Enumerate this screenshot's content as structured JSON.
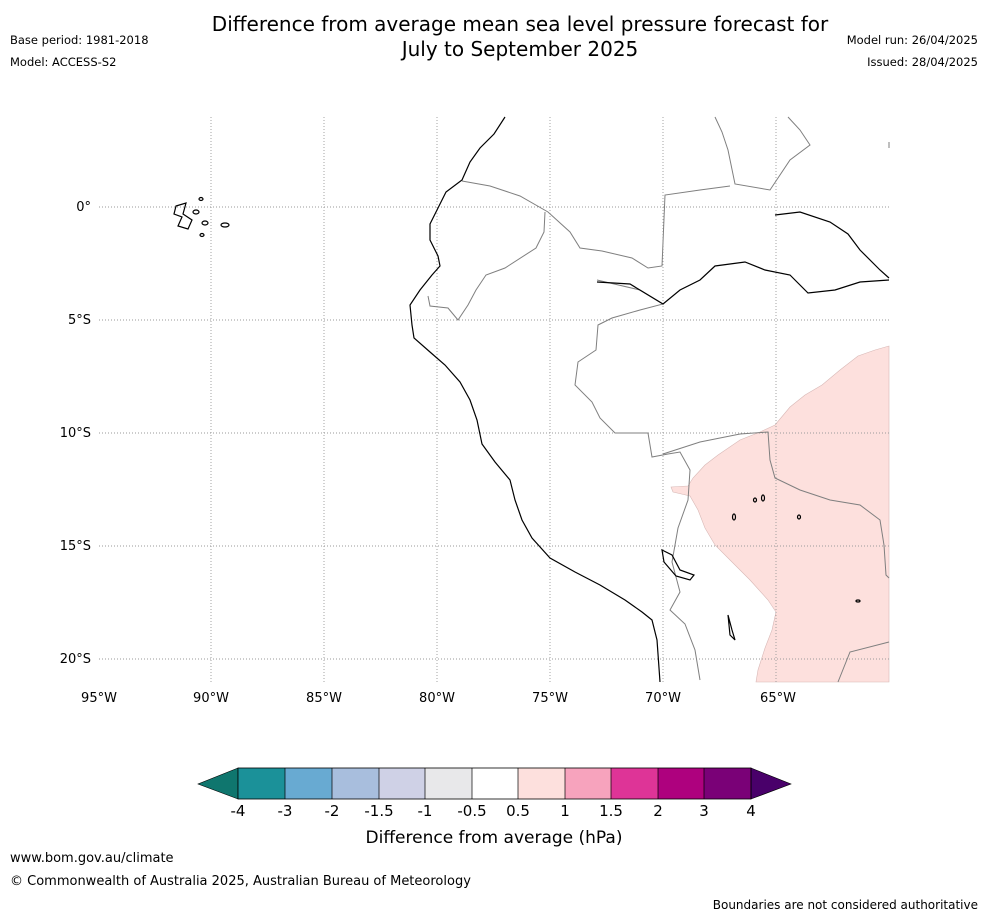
{
  "header": {
    "title_line1": "Difference from average mean sea level pressure forecast for",
    "title_line2": "July to September 2025",
    "base_period": "Base period: 1981-2018",
    "model": "Model: ACCESS-S2",
    "model_run": "Model run: 26/04/2025",
    "issued": "Issued: 28/04/2025"
  },
  "map": {
    "lon_labels": [
      "95°W",
      "90°W",
      "85°W",
      "80°W",
      "75°W",
      "70°W",
      "65°W"
    ],
    "lat_labels": [
      "0°",
      "5°S",
      "10°S",
      "15°S",
      "20°S"
    ],
    "anomaly_fill_color": "#fde0dd"
  },
  "colorbar": {
    "tick_labels": [
      "-4",
      "-3",
      "-2",
      "-1.5",
      "-1",
      "-0.5",
      "0.5",
      "1",
      "1.5",
      "2",
      "3",
      "4"
    ],
    "colors": [
      "#0f766e",
      "#1b9199",
      "#68aad2",
      "#a8bedd",
      "#cfd1e6",
      "#e8e8ea",
      "#ffffff",
      "#fde0dd",
      "#f7a3bd",
      "#de3497",
      "#ae017e",
      "#7a0177",
      "#49006a"
    ],
    "label": "Difference from average (hPa)"
  },
  "footer": {
    "url": "www.bom.gov.au/climate",
    "copyright": "© Commonwealth of Australia 2025, Australian Bureau of Meteorology",
    "note": "Boundaries are not considered authoritative"
  }
}
